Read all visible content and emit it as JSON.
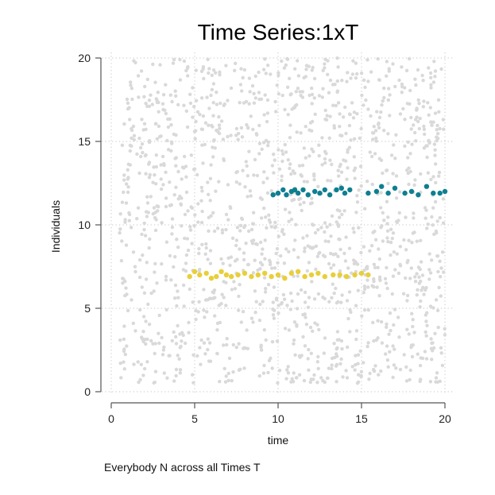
{
  "chart_data": {
    "type": "scatter",
    "title": "Time Series:1xT",
    "xlabel": "time",
    "ylabel": "Individuals",
    "note": "Everybody N across all Times T",
    "xlim": [
      0,
      20
    ],
    "ylim": [
      0,
      20
    ],
    "x_ticks": [
      "0",
      "5",
      "10",
      "15",
      "20"
    ],
    "y_ticks": [
      "0",
      "5",
      "10",
      "15",
      "20"
    ],
    "grid": true,
    "colors": {
      "background_points": "#d9d9d9",
      "series_a": "#0e7f91",
      "series_b": "#e8cf3a"
    },
    "background": {
      "description_count": 1500,
      "x_range": [
        0.5,
        20
      ],
      "y_range": [
        0.5,
        20
      ]
    },
    "series": [
      {
        "color": "#0e7f91",
        "x": [
          9.7,
          10.0,
          10.3,
          10.5,
          10.8,
          11.0,
          11.2,
          11.5,
          11.8,
          12.2,
          12.5,
          12.8,
          13.1,
          13.5,
          13.8,
          14.0,
          14.3,
          15.4,
          15.9,
          16.2,
          16.6,
          17.0,
          17.6,
          18.0,
          18.4,
          18.9,
          19.3,
          19.7,
          20.0
        ],
        "y": [
          11.8,
          11.9,
          12.1,
          11.8,
          12.0,
          12.1,
          11.9,
          12.1,
          11.8,
          12.0,
          11.9,
          12.1,
          11.8,
          12.1,
          12.2,
          11.9,
          12.1,
          11.9,
          12.0,
          12.3,
          11.9,
          12.2,
          11.9,
          12.0,
          11.8,
          12.3,
          11.9,
          11.9,
          12.0
        ]
      },
      {
        "color": "#e8cf3a",
        "x": [
          4.7,
          5.0,
          5.3,
          5.7,
          6.0,
          6.3,
          6.6,
          6.9,
          7.2,
          7.6,
          8.0,
          8.4,
          8.8,
          9.2,
          9.6,
          10.0,
          10.4,
          10.8,
          11.2,
          11.6,
          12.0,
          12.4,
          12.8,
          13.3,
          13.7,
          14.1,
          14.6,
          15.0,
          15.4
        ],
        "y": [
          6.9,
          7.2,
          7.0,
          7.1,
          6.8,
          6.9,
          7.2,
          7.0,
          6.9,
          7.0,
          7.1,
          6.9,
          7.0,
          7.1,
          6.9,
          7.0,
          6.8,
          7.1,
          7.2,
          6.9,
          7.0,
          7.1,
          6.9,
          7.0,
          7.0,
          6.9,
          7.0,
          7.1,
          7.0
        ]
      }
    ]
  }
}
